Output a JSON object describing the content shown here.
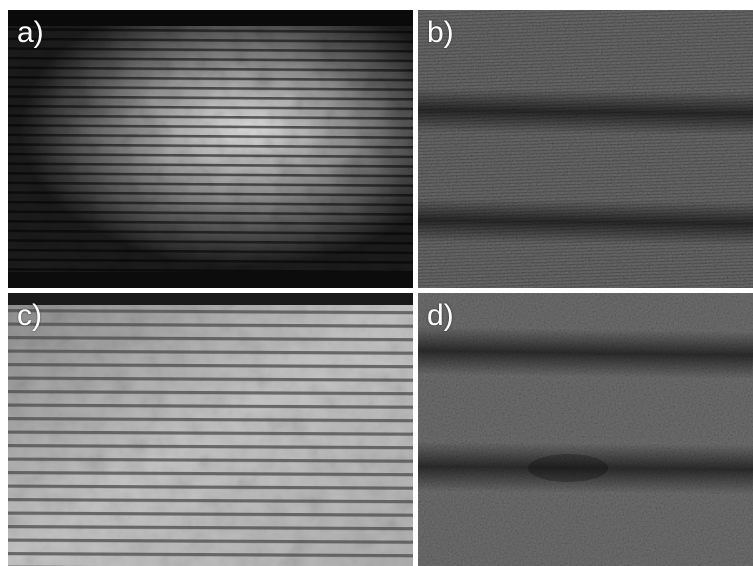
{
  "figure": {
    "panels": [
      {
        "id": "a",
        "label": "a)"
      },
      {
        "id": "b",
        "label": "b)"
      },
      {
        "id": "c",
        "label": "c)"
      },
      {
        "id": "d",
        "label": "d)"
      }
    ]
  }
}
